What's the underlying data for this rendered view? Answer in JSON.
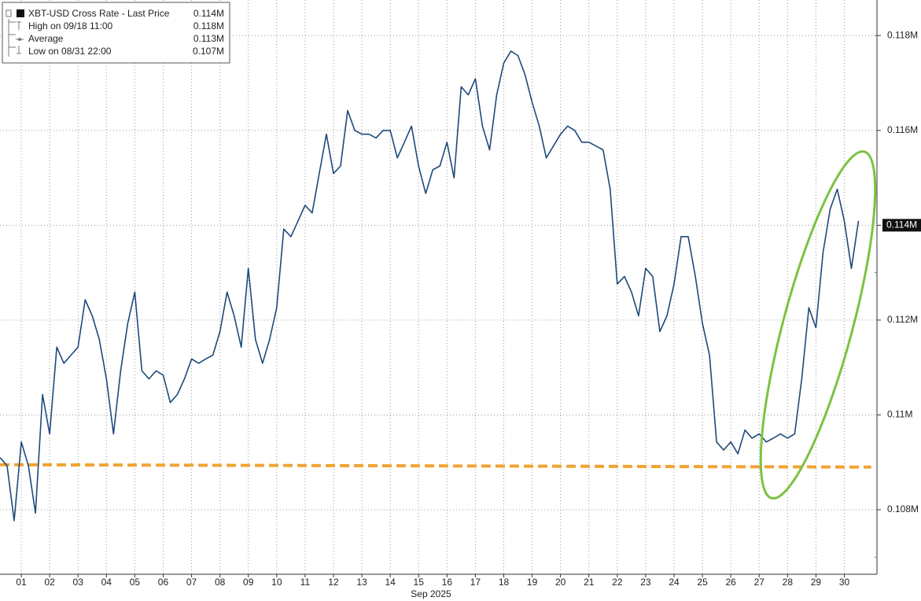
{
  "chart_data": {
    "type": "line",
    "x_label": "Sep 2025",
    "legend": [
      {
        "name": "XBT-USD Cross Rate - Last Price",
        "value": 114000,
        "value_label": "0.114M"
      },
      {
        "name": "High on 09/18 11:00",
        "value": 118000,
        "value_label": "0.118M"
      },
      {
        "name": "Average",
        "value": 113000,
        "value_label": "0.113M"
      },
      {
        "name": "Low on 08/31 22:00",
        "value": 107000,
        "value_label": "0.107M"
      }
    ],
    "x": [
      0.25,
      0.5,
      0.75,
      1,
      1.25,
      1.5,
      1.75,
      2,
      2.25,
      2.5,
      2.75,
      3,
      3.25,
      3.5,
      3.75,
      4,
      4.25,
      4.5,
      4.75,
      5,
      5.25,
      5.5,
      5.75,
      6,
      6.25,
      6.5,
      6.75,
      7,
      7.25,
      7.5,
      7.75,
      8,
      8.25,
      8.5,
      8.75,
      9,
      9.25,
      9.5,
      9.75,
      10,
      10.25,
      10.5,
      10.75,
      11,
      11.25,
      11.5,
      11.75,
      12,
      12.25,
      12.5,
      12.75,
      13,
      13.25,
      13.5,
      13.75,
      14,
      14.25,
      14.5,
      14.75,
      15,
      15.25,
      15.5,
      15.75,
      16,
      16.25,
      16.5,
      16.75,
      17,
      17.25,
      17.5,
      17.75,
      18,
      18.25,
      18.5,
      18.75,
      19,
      19.25,
      19.5,
      19.75,
      20,
      20.25,
      20.5,
      20.75,
      21,
      21.25,
      21.5,
      21.75,
      22,
      22.25,
      22.5,
      22.75,
      23,
      23.25,
      23.5,
      23.75,
      24,
      24.25,
      24.5,
      24.75,
      25,
      25.25,
      25.5,
      25.75,
      26,
      26.25,
      26.5,
      26.75,
      27,
      27.25,
      27.5,
      27.75,
      28,
      28.25,
      28.5,
      28.75,
      29,
      29.25,
      29.5,
      29.75,
      30,
      30.25,
      30.5
    ],
    "series": [
      {
        "color": "#1d4a7a",
        "values": [
          109100,
          108930,
          107770,
          109430,
          108930,
          107930,
          110430,
          109600,
          111430,
          111090,
          111260,
          111430,
          112430,
          112090,
          111590,
          110760,
          109600,
          110930,
          111930,
          112590,
          110930,
          110760,
          110930,
          110840,
          110260,
          110430,
          110760,
          111180,
          111090,
          111180,
          111260,
          111760,
          112590,
          112090,
          111430,
          113090,
          111590,
          111090,
          111590,
          112260,
          113920,
          113760,
          114090,
          114420,
          114260,
          115090,
          115920,
          115090,
          115250,
          116420,
          116000,
          115920,
          115920,
          115840,
          116000,
          116000,
          115420,
          115750,
          116090,
          115250,
          114670,
          115170,
          115250,
          115750,
          115000,
          116920,
          116750,
          117090,
          116090,
          115590,
          116750,
          117420,
          117670,
          117580,
          117170,
          116590,
          116090,
          115420,
          115670,
          115920,
          116090,
          116000,
          115750,
          115750,
          115670,
          115590,
          114760,
          112760,
          112920,
          112590,
          112090,
          113090,
          112920,
          111760,
          112090,
          112760,
          113760,
          113760,
          112920,
          111930,
          111260,
          109430,
          109260,
          109430,
          109180,
          109680,
          109510,
          109600,
          109430,
          109510,
          109600,
          109510,
          109600,
          110760,
          112260,
          111840,
          113420,
          114340,
          114760,
          114090,
          113090,
          114090
        ]
      }
    ],
    "reference_line": {
      "x": [
        0.25,
        30.95
      ],
      "values": [
        108950,
        108900
      ],
      "color": "#f0a434"
    },
    "xlim": [
      0.25,
      31.15
    ],
    "ylim": [
      106640,
      118750
    ],
    "xticks": [
      {
        "value": 1,
        "label": "01"
      },
      {
        "value": 2,
        "label": "02"
      },
      {
        "value": 3,
        "label": "03"
      },
      {
        "value": 4,
        "label": "04"
      },
      {
        "value": 5,
        "label": "05"
      },
      {
        "value": 6,
        "label": "06"
      },
      {
        "value": 7,
        "label": "07"
      },
      {
        "value": 8,
        "label": "08"
      },
      {
        "value": 9,
        "label": "09"
      },
      10,
      11,
      12,
      13,
      14,
      15,
      16,
      17,
      18,
      19,
      20,
      21,
      22,
      23,
      24,
      25,
      26,
      27,
      28,
      29,
      30
    ],
    "yticks": [
      {
        "value": 108000,
        "label": "0.108M"
      },
      {
        "value": 110000,
        "label": "0.11M"
      },
      {
        "value": 112000,
        "label": "0.112M"
      },
      {
        "value": 114000,
        "label": "0.114M"
      },
      {
        "value": 116000,
        "label": "0.116M"
      },
      {
        "value": 118000,
        "label": "0.118M"
      }
    ],
    "grid": true,
    "legend_position": "top-left"
  }
}
